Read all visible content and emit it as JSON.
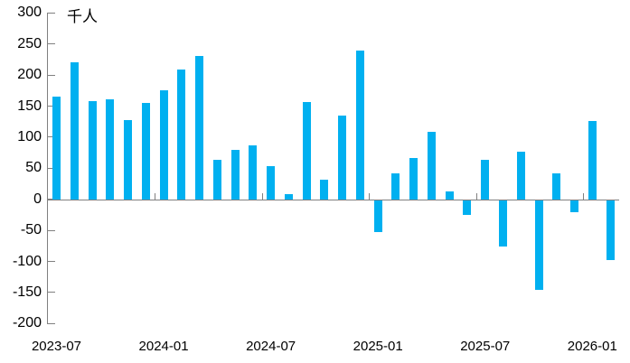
{
  "chart_data": {
    "type": "bar",
    "title": "千人",
    "ylabel": "千人",
    "xlabel": "",
    "legend_position": "none",
    "grid": false,
    "ylim": [
      -200,
      300
    ],
    "y_tick_step": 50,
    "y_tick_labels": [
      "300",
      "250",
      "200",
      "150",
      "100",
      "50",
      "0",
      "-50",
      "-100",
      "-150",
      "-200"
    ],
    "x_tick_labels": [
      "2023-07",
      "2024-01",
      "2024-07",
      "2025-01",
      "2025-07",
      "2026-01"
    ],
    "categories": [
      "2023-07",
      "2023-08",
      "2023-09",
      "2023-10",
      "2023-11",
      "2023-12",
      "2024-01",
      "2024-02",
      "2024-03",
      "2024-04",
      "2024-05",
      "2024-06",
      "2024-07",
      "2024-08",
      "2024-09",
      "2024-10",
      "2024-11",
      "2024-12",
      "2025-01",
      "2025-02",
      "2025-03",
      "2025-04",
      "2025-05",
      "2025-06",
      "2025-07",
      "2025-08",
      "2025-09",
      "2025-10",
      "2025-11",
      "2025-12",
      "2026-01",
      "2026-02"
    ],
    "values": [
      165,
      220,
      158,
      161,
      128,
      155,
      176,
      209,
      231,
      64,
      79,
      87,
      53,
      8,
      156,
      32,
      135,
      240,
      -51,
      41,
      66,
      108,
      12,
      -23,
      64,
      -75,
      76,
      -145,
      41,
      -20,
      126,
      -97
    ],
    "bar_color": "#00B0F0",
    "axis_color": "#808080",
    "text_color": "#000000"
  }
}
